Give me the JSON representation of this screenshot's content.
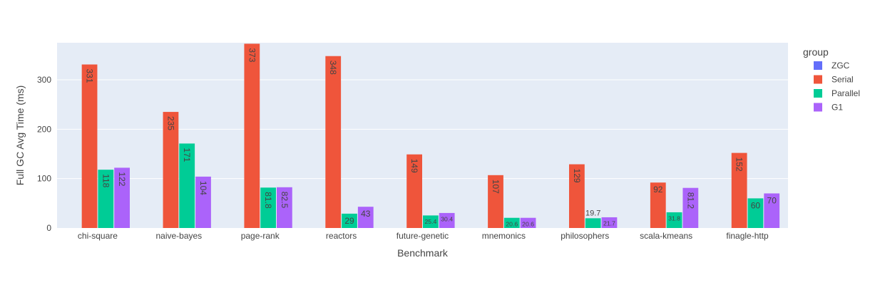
{
  "chart_data": {
    "type": "bar",
    "xlabel": "Benchmark",
    "ylabel": "Full GC Avg Time (ms)",
    "ylim": [
      0,
      375
    ],
    "yticks": [
      0,
      100,
      200,
      300
    ],
    "grid": true,
    "legend_title": "group",
    "legend_position": "right",
    "categories": [
      "chi-square",
      "naive-bayes",
      "page-rank",
      "reactors",
      "future-genetic",
      "mnemonics",
      "philosophers",
      "scala-kmeans",
      "finagle-http"
    ],
    "series": [
      {
        "name": "ZGC",
        "color": "#636efa",
        "values": [
          null,
          null,
          null,
          null,
          null,
          null,
          null,
          null,
          null
        ],
        "labels": [
          "",
          "",
          "",
          "",
          "",
          "",
          "",
          "",
          ""
        ]
      },
      {
        "name": "Serial",
        "color": "#ef553b",
        "values": [
          331,
          235,
          373,
          348,
          149,
          107,
          129,
          92,
          152
        ],
        "labels": [
          "331",
          "235",
          "373",
          "348",
          "149",
          "107",
          "129",
          "92",
          "152"
        ]
      },
      {
        "name": "Parallel",
        "color": "#00cc96",
        "values": [
          118,
          171,
          81.8,
          29,
          25.4,
          20.6,
          19.7,
          31.8,
          60
        ],
        "labels": [
          "118",
          "171",
          "81.8",
          "29",
          "25.4",
          "20.6",
          "19.7",
          "31.8",
          "60"
        ]
      },
      {
        "name": "G1",
        "color": "#ab63fa",
        "values": [
          122,
          104,
          82.5,
          43,
          30.4,
          20.6,
          21.7,
          81.2,
          70
        ],
        "labels": [
          "122",
          "104",
          "82.5",
          "43",
          "30.4",
          "20.6",
          "21.7",
          "81.2",
          "70"
        ]
      }
    ]
  }
}
